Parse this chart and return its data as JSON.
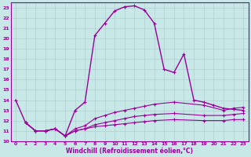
{
  "xlabel": "Windchill (Refroidissement éolien,°C)",
  "ylabel": "",
  "xlim": [
    -0.5,
    23.5
  ],
  "ylim": [
    10,
    23.5
  ],
  "xticks": [
    0,
    1,
    2,
    3,
    4,
    5,
    6,
    7,
    8,
    9,
    10,
    11,
    12,
    13,
    14,
    15,
    16,
    17,
    18,
    19,
    20,
    21,
    22,
    23
  ],
  "yticks": [
    10,
    11,
    12,
    13,
    14,
    15,
    16,
    17,
    18,
    19,
    20,
    21,
    22,
    23
  ],
  "background_color": "#c8e8e8",
  "grid_color": "#b0d0d0",
  "line_color": "#990099",
  "lines": [
    {
      "x": [
        0,
        1,
        2,
        3,
        4,
        5,
        6,
        7,
        8,
        9,
        10,
        11,
        12,
        13,
        14,
        15,
        16,
        17,
        18,
        19,
        20,
        21,
        22,
        23
      ],
      "y": [
        14.0,
        11.8,
        11.0,
        11.0,
        11.2,
        10.5,
        13.0,
        13.8,
        20.3,
        21.5,
        22.7,
        23.1,
        23.2,
        22.8,
        21.5,
        17.0,
        16.7,
        18.5,
        14.0,
        13.8,
        13.5,
        13.2,
        13.1,
        13.0
      ]
    },
    {
      "x": [
        1,
        2,
        3,
        4,
        5,
        6,
        7,
        8,
        9,
        10,
        11,
        12,
        13,
        14,
        16,
        19,
        21,
        22,
        23
      ],
      "y": [
        11.8,
        11.0,
        11.0,
        11.2,
        10.5,
        11.0,
        11.2,
        11.4,
        11.5,
        11.6,
        11.7,
        11.8,
        11.9,
        12.0,
        12.1,
        12.0,
        12.0,
        12.1,
        12.1
      ]
    },
    {
      "x": [
        1,
        2,
        3,
        4,
        5,
        6,
        7,
        8,
        9,
        10,
        11,
        12,
        13,
        14,
        16,
        19,
        21,
        22,
        23
      ],
      "y": [
        11.8,
        11.0,
        11.0,
        11.2,
        10.5,
        11.0,
        11.2,
        11.6,
        11.8,
        12.0,
        12.2,
        12.4,
        12.5,
        12.6,
        12.7,
        12.5,
        12.5,
        12.6,
        12.7
      ]
    },
    {
      "x": [
        1,
        2,
        3,
        4,
        5,
        6,
        7,
        8,
        9,
        10,
        11,
        12,
        13,
        14,
        16,
        19,
        21,
        22,
        23
      ],
      "y": [
        11.8,
        11.0,
        11.0,
        11.2,
        10.5,
        11.2,
        11.5,
        12.2,
        12.5,
        12.8,
        13.0,
        13.2,
        13.4,
        13.6,
        13.8,
        13.5,
        13.0,
        13.2,
        13.3
      ]
    }
  ]
}
